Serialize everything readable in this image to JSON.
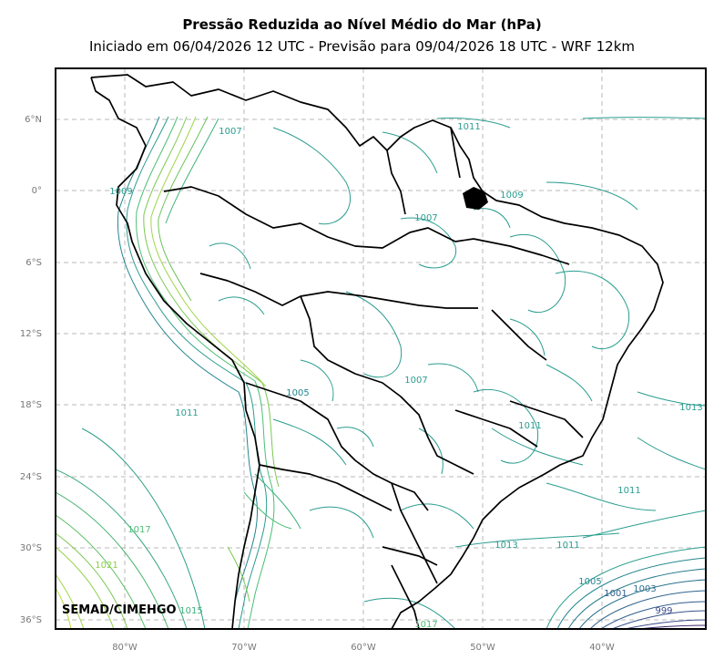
{
  "title": "Pressão Reduzida ao Nível Médio do Mar (hPa)",
  "subtitle": "Iniciado em 06/04/2026 12 UTC - Previsão para 09/04/2026 18 UTC - WRF 12km",
  "credit": "SEMAD/CIMEHGO",
  "lat_ticks": [
    "6°N",
    "0°",
    "6°S",
    "12°S",
    "18°S",
    "24°S",
    "30°S",
    "36°S"
  ],
  "lon_ticks": [
    "80°W",
    "70°W",
    "60°W",
    "50°W",
    "40°W"
  ],
  "contour_labels": [
    {
      "text": "1007",
      "color": "#2a9d8f"
    },
    {
      "text": "1011",
      "color": "#2a9d8f"
    },
    {
      "text": "1009",
      "color": "#2a9d8f"
    },
    {
      "text": "1007",
      "color": "#2a9d8f"
    },
    {
      "text": "1009",
      "color": "#2a9d8f"
    },
    {
      "text": "1011",
      "color": "#2a9d8f"
    },
    {
      "text": "1007",
      "color": "#2a9d8f"
    },
    {
      "text": "1011",
      "color": "#2a9d8f"
    },
    {
      "text": "1013",
      "color": "#2a9d8f"
    },
    {
      "text": "1011",
      "color": "#2a9d8f"
    },
    {
      "text": "1017",
      "color": "#4cbf75"
    },
    {
      "text": "1021",
      "color": "#8ccf45"
    },
    {
      "text": "1013",
      "color": "#2a9d8f"
    },
    {
      "text": "1011",
      "color": "#2a9d8f"
    },
    {
      "text": "1005",
      "color": "#23868f"
    },
    {
      "text": "1003",
      "color": "#2a6f8e"
    },
    {
      "text": "1001",
      "color": "#315d8d"
    },
    {
      "text": "999",
      "color": "#3b4a89"
    },
    {
      "text": "1017",
      "color": "#4cbf75"
    },
    {
      "text": "1015",
      "color": "#3db27d"
    },
    {
      "text": "1005",
      "color": "#23868f"
    }
  ],
  "colors": {
    "frame": "#000000",
    "grid": "#b0b0b0",
    "borders": "#000000",
    "low_pressure": "#3b2a6b",
    "mid_pressure": "#2a9d8f",
    "high_pressure": "#a0d64a"
  }
}
